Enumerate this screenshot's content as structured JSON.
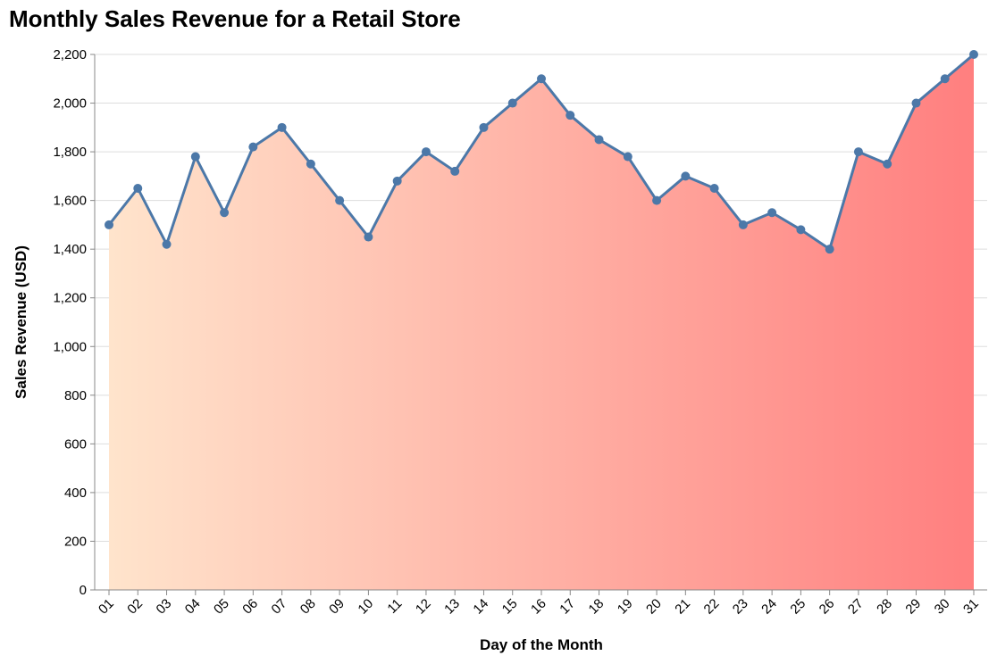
{
  "chart_data": {
    "type": "area",
    "title": "Monthly Sales Revenue for a Retail Store",
    "xlabel": "Day of the Month",
    "ylabel": "Sales Revenue (USD)",
    "categories": [
      "01",
      "02",
      "03",
      "04",
      "05",
      "06",
      "07",
      "08",
      "09",
      "10",
      "11",
      "12",
      "13",
      "14",
      "15",
      "16",
      "17",
      "18",
      "19",
      "20",
      "21",
      "22",
      "23",
      "24",
      "25",
      "26",
      "27",
      "28",
      "29",
      "30",
      "31"
    ],
    "values": [
      1500,
      1650,
      1420,
      1780,
      1550,
      1820,
      1900,
      1750,
      1600,
      1450,
      1680,
      1800,
      1720,
      1900,
      2000,
      2100,
      1950,
      1850,
      1780,
      1600,
      1700,
      1650,
      1500,
      1550,
      1480,
      1400,
      1800,
      1750,
      2000,
      2100,
      2200
    ],
    "ylim": [
      0,
      2200
    ],
    "yticks": [
      0,
      200,
      400,
      600,
      800,
      1000,
      1200,
      1400,
      1600,
      1800,
      2000,
      2200
    ],
    "ytick_labels": [
      "0",
      "200",
      "400",
      "600",
      "800",
      "1,000",
      "1,200",
      "1,400",
      "1,600",
      "1,800",
      "2,000",
      "2,200"
    ],
    "grid": true,
    "legend": "none",
    "colors": {
      "line": "#4c78a8",
      "fill_start": "#ffe4cc",
      "fill_end": "#ff7f7f",
      "grid": "#dddddd",
      "axis": "#888888"
    }
  }
}
